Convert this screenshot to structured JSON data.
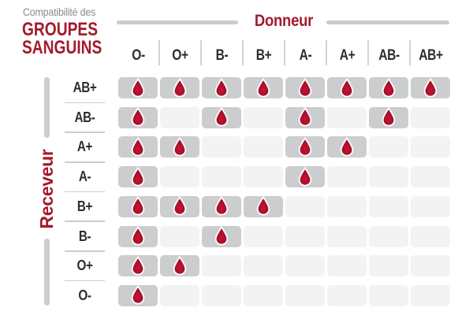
{
  "title": {
    "subtitle": "Compatibilité des",
    "main_line1": "GROUPES",
    "main_line2": "SANGUINS"
  },
  "chart_data": {
    "type": "heatmap",
    "title": "Compatibilité des GROUPES SANGUINS",
    "donor_axis_label": "Donneur",
    "receiver_axis_label": "Receveur",
    "donors": [
      "O-",
      "O+",
      "B-",
      "B+",
      "A-",
      "A+",
      "AB-",
      "AB+"
    ],
    "receivers": [
      "AB+",
      "AB-",
      "A+",
      "A-",
      "B+",
      "B-",
      "O+",
      "O-"
    ],
    "marker_icon": "blood-drop-icon",
    "marker_meaning": "compatible",
    "compatibility": [
      [
        1,
        1,
        1,
        1,
        1,
        1,
        1,
        1
      ],
      [
        1,
        0,
        1,
        0,
        1,
        0,
        1,
        0
      ],
      [
        1,
        1,
        0,
        0,
        1,
        1,
        0,
        0
      ],
      [
        1,
        0,
        0,
        0,
        1,
        0,
        0,
        0
      ],
      [
        1,
        1,
        1,
        1,
        0,
        0,
        0,
        0
      ],
      [
        1,
        0,
        1,
        0,
        0,
        0,
        0,
        0
      ],
      [
        1,
        1,
        0,
        0,
        0,
        0,
        0,
        0
      ],
      [
        1,
        0,
        0,
        0,
        0,
        0,
        0,
        0
      ]
    ]
  },
  "colors": {
    "accent_red": "#a31a2b",
    "drop_fill_center": "#c51434",
    "drop_fill_edge": "#920d23",
    "drop_outline": "#ffffff",
    "cell_filled": "#cbcdce",
    "cell_empty": "#f3f3f4",
    "line_gray": "#cccccc",
    "subtitle_gray": "#8a8a8a",
    "label_dark": "#2d2d2d"
  }
}
